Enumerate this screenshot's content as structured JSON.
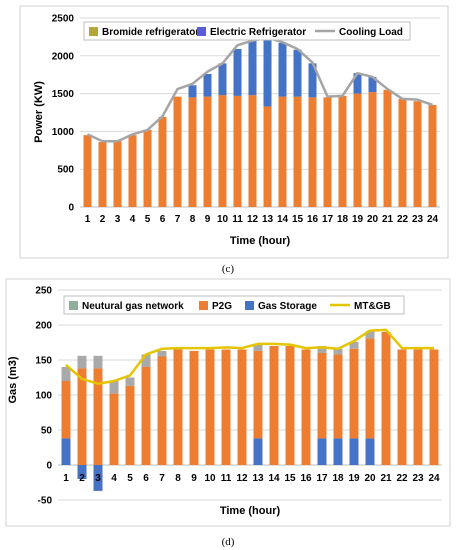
{
  "chart_data": [
    {
      "type": "bar",
      "caption": "(c)",
      "xlabel": "Time (hour)",
      "ylabel": "Power (KW)",
      "ylim": [
        0,
        2500
      ],
      "yticks": [
        0,
        500,
        1000,
        1500,
        2000,
        2500
      ],
      "grid": true,
      "legend_position": "top",
      "stacked": true,
      "categories": [
        "1",
        "2",
        "3",
        "4",
        "5",
        "6",
        "7",
        "8",
        "9",
        "10",
        "11",
        "12",
        "13",
        "14",
        "15",
        "16",
        "17",
        "18",
        "19",
        "20",
        "21",
        "22",
        "23",
        "24"
      ],
      "series": [
        {
          "name": "Bromide refrigerator",
          "kind": "bar",
          "color": "#ED7D31",
          "legend_color": "#B8A53A",
          "values": [
            950,
            860,
            870,
            950,
            1020,
            1190,
            1460,
            1450,
            1460,
            1480,
            1470,
            1480,
            1330,
            1460,
            1460,
            1450,
            1450,
            1470,
            1500,
            1520,
            1550,
            1430,
            1400,
            1350
          ]
        },
        {
          "name": "Electric Refrigerator",
          "kind": "bar",
          "color": "#4472C4",
          "legend_color": "#5B5BD6",
          "values": [
            0,
            0,
            0,
            0,
            0,
            0,
            0,
            160,
            300,
            420,
            620,
            730,
            890,
            710,
            620,
            450,
            0,
            0,
            270,
            200,
            0,
            0,
            0,
            0
          ]
        },
        {
          "name": "Cooling Load",
          "kind": "line",
          "color": "#A5A5A5",
          "values": [
            960,
            870,
            870,
            960,
            1020,
            1200,
            1560,
            1630,
            1790,
            1900,
            2140,
            2200,
            2240,
            2180,
            2090,
            1910,
            1460,
            1470,
            1770,
            1720,
            1560,
            1430,
            1420,
            1350
          ]
        }
      ]
    },
    {
      "type": "bar",
      "caption": "(d)",
      "xlabel": "Time (hour)",
      "ylabel": "Gas (m3)",
      "ylim": [
        -50,
        250
      ],
      "yticks": [
        -50,
        0,
        50,
        100,
        150,
        200,
        250
      ],
      "grid": true,
      "legend_position": "top",
      "stacked": true,
      "categories": [
        "1",
        "2",
        "3",
        "4",
        "5",
        "6",
        "7",
        "8",
        "9",
        "10",
        "11",
        "12",
        "13",
        "14",
        "15",
        "16",
        "17",
        "18",
        "19",
        "20",
        "21",
        "22",
        "23",
        "24"
      ],
      "series": [
        {
          "name": "Gas Storage",
          "kind": "bar",
          "color": "#4472C4",
          "values": [
            38,
            -20,
            -37,
            0,
            0,
            0,
            0,
            0,
            0,
            0,
            0,
            0,
            38,
            0,
            0,
            0,
            38,
            38,
            38,
            38,
            0,
            0,
            0,
            0
          ]
        },
        {
          "name": "P2G",
          "kind": "bar",
          "color": "#ED7D31",
          "values": [
            82,
            138,
            138,
            102,
            113,
            140,
            155,
            165,
            163,
            165,
            165,
            165,
            125,
            170,
            170,
            165,
            122,
            120,
            128,
            143,
            190,
            165,
            165,
            165
          ]
        },
        {
          "name": "Neutural gas network",
          "kind": "bar",
          "color": "#A9A9A9",
          "legend_color": "#8FAF9A",
          "values": [
            20,
            18,
            18,
            18,
            12,
            18,
            8,
            0,
            0,
            0,
            0,
            0,
            10,
            0,
            0,
            0,
            10,
            8,
            10,
            10,
            0,
            0,
            0,
            0
          ]
        },
        {
          "name": "MT&GB",
          "kind": "line",
          "color": "#E5C400",
          "values": [
            143,
            123,
            116,
            120,
            128,
            158,
            166,
            167,
            167,
            167,
            168,
            167,
            173,
            173,
            172,
            167,
            168,
            166,
            177,
            192,
            193,
            167,
            167,
            167
          ]
        }
      ]
    }
  ]
}
